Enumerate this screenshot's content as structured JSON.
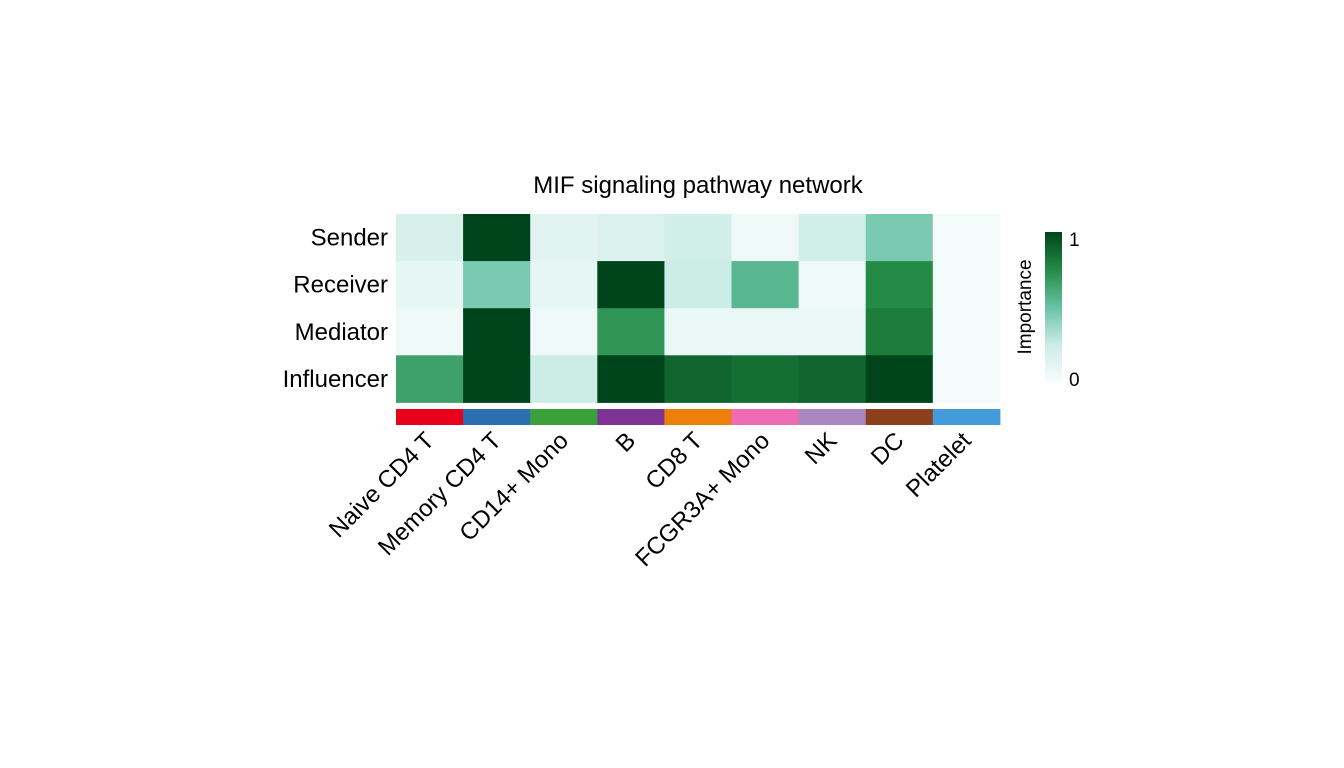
{
  "chart_data": {
    "type": "heatmap",
    "title": "MIF signaling pathway network",
    "rows": [
      "Sender",
      "Receiver",
      "Mediator",
      "Influencer"
    ],
    "columns": [
      "Naive CD4 T",
      "Memory CD4 T",
      "CD14+ Mono",
      "B",
      "CD8 T",
      "FCGR3A+ Mono",
      "NK",
      "DC",
      "Platelet"
    ],
    "values": [
      [
        0.18,
        1.0,
        0.12,
        0.17,
        0.22,
        0.05,
        0.22,
        0.45,
        0.02
      ],
      [
        0.1,
        0.45,
        0.1,
        1.0,
        0.25,
        0.55,
        0.05,
        0.75,
        0.02
      ],
      [
        0.05,
        1.0,
        0.04,
        0.7,
        0.08,
        0.08,
        0.07,
        0.8,
        0.02
      ],
      [
        0.65,
        1.0,
        0.25,
        1.0,
        0.88,
        0.85,
        0.88,
        1.0,
        0.02
      ]
    ],
    "column_colors": [
      "#e7011b",
      "#2c6fb0",
      "#3aa13a",
      "#7d3393",
      "#ee7f0b",
      "#ef6bb4",
      "#ab87c1",
      "#8c3f1b",
      "#439bd9"
    ],
    "colorscale": {
      "low": "#f7fbfd",
      "high": "#063a18",
      "stops": [
        "#f7fcfd",
        "#ccece6",
        "#66c2a4",
        "#238b45",
        "#00441b"
      ]
    },
    "legend": {
      "title": "Importance",
      "min_label": "0",
      "max_label": "1",
      "position": "right"
    }
  }
}
